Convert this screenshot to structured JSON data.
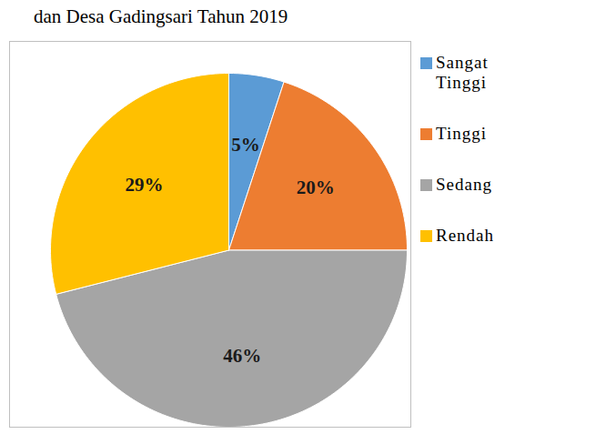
{
  "chart_data": {
    "type": "pie",
    "title": "dan Desa Gadingsari Tahun 2019",
    "categories": [
      "Sangat Tinggi",
      "Tinggi",
      "Sedang",
      "Rendah"
    ],
    "values": [
      5,
      20,
      46,
      29
    ],
    "value_labels": [
      "5%",
      "20%",
      "46%",
      "29%"
    ],
    "colors": [
      "#5b9bd5",
      "#ed7d31",
      "#a5a5a5",
      "#ffc000"
    ],
    "data_labels": true,
    "legend": "right"
  }
}
